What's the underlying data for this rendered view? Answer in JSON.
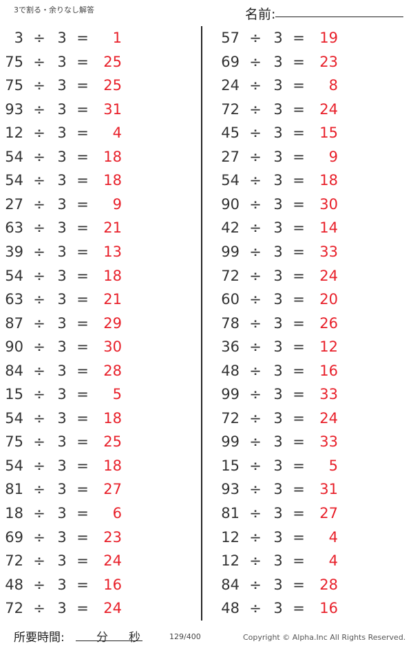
{
  "header": {
    "title": "3で割る・余りなし解答",
    "name_label": "名前:"
  },
  "operator": "÷",
  "equals": "=",
  "divisor": "3",
  "left_column": [
    {
      "dividend": "3",
      "answer": "1"
    },
    {
      "dividend": "75",
      "answer": "25"
    },
    {
      "dividend": "75",
      "answer": "25"
    },
    {
      "dividend": "93",
      "answer": "31"
    },
    {
      "dividend": "12",
      "answer": "4"
    },
    {
      "dividend": "54",
      "answer": "18"
    },
    {
      "dividend": "54",
      "answer": "18"
    },
    {
      "dividend": "27",
      "answer": "9"
    },
    {
      "dividend": "63",
      "answer": "21"
    },
    {
      "dividend": "39",
      "answer": "13"
    },
    {
      "dividend": "54",
      "answer": "18"
    },
    {
      "dividend": "63",
      "answer": "21"
    },
    {
      "dividend": "87",
      "answer": "29"
    },
    {
      "dividend": "90",
      "answer": "30"
    },
    {
      "dividend": "84",
      "answer": "28"
    },
    {
      "dividend": "15",
      "answer": "5"
    },
    {
      "dividend": "54",
      "answer": "18"
    },
    {
      "dividend": "75",
      "answer": "25"
    },
    {
      "dividend": "54",
      "answer": "18"
    },
    {
      "dividend": "81",
      "answer": "27"
    },
    {
      "dividend": "18",
      "answer": "6"
    },
    {
      "dividend": "69",
      "answer": "23"
    },
    {
      "dividend": "72",
      "answer": "24"
    },
    {
      "dividend": "48",
      "answer": "16"
    },
    {
      "dividend": "72",
      "answer": "24"
    }
  ],
  "right_column": [
    {
      "dividend": "57",
      "answer": "19"
    },
    {
      "dividend": "69",
      "answer": "23"
    },
    {
      "dividend": "24",
      "answer": "8"
    },
    {
      "dividend": "72",
      "answer": "24"
    },
    {
      "dividend": "45",
      "answer": "15"
    },
    {
      "dividend": "27",
      "answer": "9"
    },
    {
      "dividend": "54",
      "answer": "18"
    },
    {
      "dividend": "90",
      "answer": "30"
    },
    {
      "dividend": "42",
      "answer": "14"
    },
    {
      "dividend": "99",
      "answer": "33"
    },
    {
      "dividend": "72",
      "answer": "24"
    },
    {
      "dividend": "60",
      "answer": "20"
    },
    {
      "dividend": "78",
      "answer": "26"
    },
    {
      "dividend": "36",
      "answer": "12"
    },
    {
      "dividend": "48",
      "answer": "16"
    },
    {
      "dividend": "99",
      "answer": "33"
    },
    {
      "dividend": "72",
      "answer": "24"
    },
    {
      "dividend": "99",
      "answer": "33"
    },
    {
      "dividend": "15",
      "answer": "5"
    },
    {
      "dividend": "93",
      "answer": "31"
    },
    {
      "dividend": "81",
      "answer": "27"
    },
    {
      "dividend": "12",
      "answer": "4"
    },
    {
      "dividend": "12",
      "answer": "4"
    },
    {
      "dividend": "84",
      "answer": "28"
    },
    {
      "dividend": "48",
      "answer": "16"
    }
  ],
  "footer": {
    "time_label": "所要時間:",
    "minutes": "分",
    "seconds": "秒",
    "page": "129/400",
    "copyright": "Copyright ©  Alpha.Inc All Rights Reserved."
  },
  "colors": {
    "answer": "#e8202a",
    "text": "#333333"
  }
}
